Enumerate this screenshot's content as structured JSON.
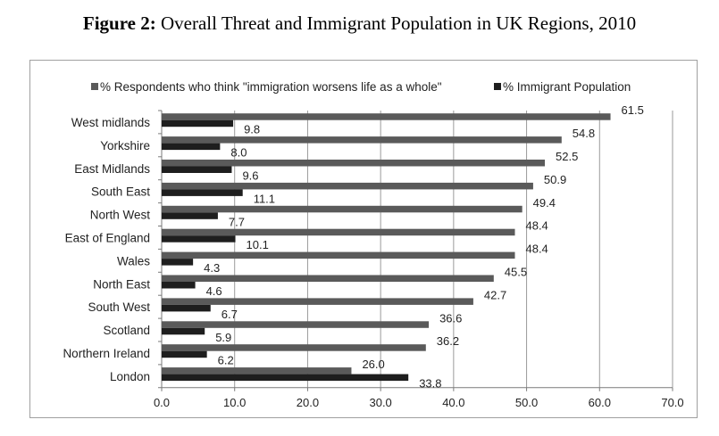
{
  "title": {
    "prefix": "Figure 2:",
    "text": "Overall Threat and Immigrant Population in UK Regions, 2010"
  },
  "chart_data": {
    "type": "bar",
    "orientation": "horizontal",
    "title": "Figure 2: Overall Threat and Immigrant Population in UK Regions, 2010",
    "categories": [
      "West midlands",
      "Yorkshire",
      "East Midlands",
      "South East",
      "North West",
      "East of England",
      "Wales",
      "North East",
      "South West",
      "Scotland",
      "Northern Ireland",
      "London"
    ],
    "series": [
      {
        "name": "% Respondents who think \"immigration worsens life as a whole\"",
        "color": "#5a5a5a",
        "values": [
          61.5,
          54.8,
          52.5,
          50.9,
          49.4,
          48.4,
          48.4,
          45.5,
          42.7,
          36.6,
          36.2,
          26.0
        ],
        "labels": [
          "61.5",
          "54.8",
          "52.5",
          "50.9",
          "49.4",
          "48.4",
          "48.4",
          "45.5",
          "42.7",
          "36.6",
          "36.2",
          "26.0"
        ]
      },
      {
        "name": "% Immigrant Population",
        "color": "#1e1e1e",
        "values": [
          9.8,
          8.0,
          9.6,
          11.1,
          7.7,
          10.1,
          4.3,
          4.6,
          6.7,
          5.9,
          6.2,
          33.8
        ],
        "labels": [
          "9.8",
          "8.0",
          "9.6",
          "11.1",
          "7.7",
          "10.1",
          "4.3",
          "4.6",
          "6.7",
          "5.9",
          "6.2",
          "33.8"
        ]
      }
    ],
    "xlim": [
      0,
      70
    ],
    "xticks": [
      0,
      10,
      20,
      30,
      40,
      50,
      60,
      70
    ],
    "xtick_labels": [
      "0.0",
      "10.0",
      "20.0",
      "30.0",
      "40.0",
      "50.0",
      "60.0",
      "70.0"
    ],
    "grid": true,
    "legend_position": "top"
  }
}
